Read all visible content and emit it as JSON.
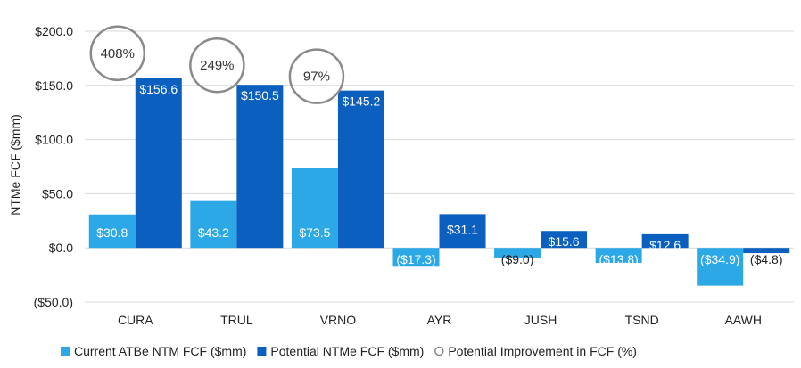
{
  "chart_data": {
    "type": "bar",
    "categories": [
      "CURA",
      "TRUL",
      "VRNO",
      "AYR",
      "JUSH",
      "TSND",
      "AAWH"
    ],
    "series": [
      {
        "name": "Current ATBe NTM FCF ($mm)",
        "values": [
          30.8,
          43.2,
          73.5,
          -17.3,
          -9.0,
          -13.8,
          -34.9
        ],
        "labels": [
          "$30.8",
          "$43.2",
          "$73.5",
          "($17.3)",
          "($9.0)",
          "($13.8)",
          "($34.9)"
        ],
        "color": "#2ca8e6"
      },
      {
        "name": "Potential NTMe FCF ($mm)",
        "values": [
          156.6,
          150.5,
          145.2,
          31.1,
          15.6,
          12.6,
          -4.8
        ],
        "labels": [
          "$156.6",
          "$150.5",
          "$145.2",
          "$31.1",
          "$15.6",
          "$12.6",
          "($4.8)"
        ],
        "color": "#0a5fbf"
      }
    ],
    "improvement": {
      "name": "Potential Improvement in FCF (%)",
      "values": [
        408,
        249,
        97
      ],
      "labels": [
        "408%",
        "249%",
        "97%"
      ]
    },
    "ylabel": "NTMe FCF ($mm)",
    "ylim": [
      -50,
      200
    ],
    "yticks": [
      200,
      150,
      100,
      50,
      0,
      -50
    ],
    "ytick_labels": [
      "$200.0",
      "$150.0",
      "$100.0",
      "$50.0",
      "$0.0",
      "($50.0)"
    ],
    "grid": true,
    "legend_position": "bottom"
  }
}
